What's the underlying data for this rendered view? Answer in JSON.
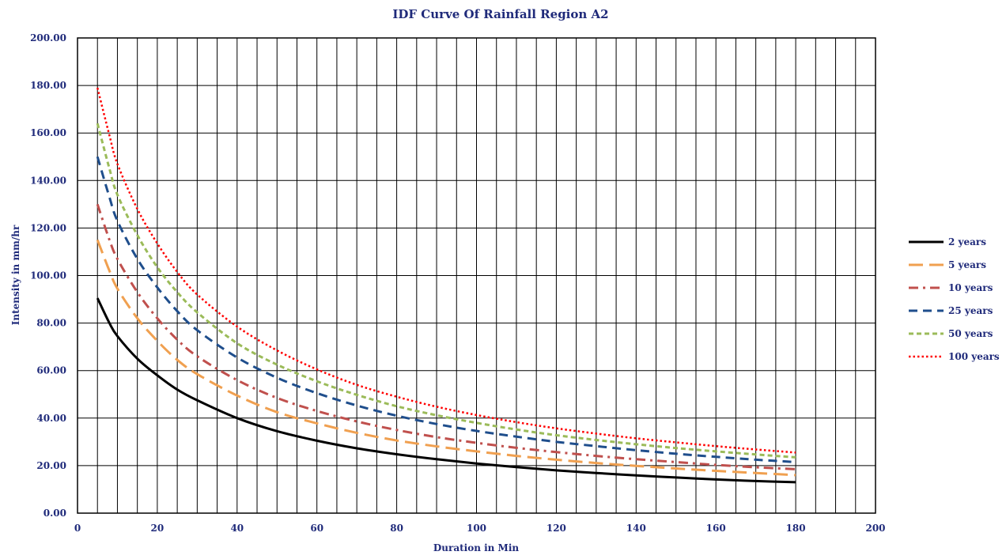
{
  "chart_data": {
    "type": "line",
    "title": "IDF Curve Of  Rainfall Region A2",
    "xlabel": "Duration in Min",
    "ylabel": "Intensity in  mm/hr",
    "xlim": [
      0,
      200
    ],
    "ylim": [
      0,
      200
    ],
    "x_ticks": [
      "0",
      "20",
      "40",
      "60",
      "80",
      "100",
      "120",
      "140",
      "160",
      "180",
      "200"
    ],
    "y_ticks": [
      "0.00",
      "20.00",
      "40.00",
      "60.00",
      "80.00",
      "100.00",
      "120.00",
      "140.00",
      "160.00",
      "180.00",
      "200.00"
    ],
    "grid": true,
    "legend_position": "right",
    "x": [
      5,
      8,
      10,
      15,
      20,
      25,
      30,
      40,
      50,
      60,
      70,
      80,
      90,
      100,
      110,
      120,
      130,
      140,
      150,
      160,
      170,
      180
    ],
    "series": [
      {
        "name": "2 years",
        "color": "#000000",
        "dash": "solid",
        "values": [
          90.5,
          80.0,
          74.5,
          65.0,
          58.0,
          52.0,
          47.5,
          40.0,
          34.5,
          30.5,
          27.3,
          24.8,
          22.7,
          20.9,
          19.4,
          18.0,
          16.9,
          15.9,
          15.0,
          14.2,
          13.5,
          13.0
        ]
      },
      {
        "name": "5 years",
        "color": "#f0a050",
        "dash": "long-dash",
        "values": [
          115.0,
          102.0,
          94.5,
          82.0,
          72.5,
          64.5,
          58.5,
          49.5,
          42.5,
          37.8,
          33.8,
          30.6,
          28.1,
          26.0,
          24.1,
          22.5,
          21.1,
          19.9,
          18.8,
          17.8,
          16.9,
          16.0
        ]
      },
      {
        "name": "10 years",
        "color": "#c0504d",
        "dash": "dash-dot",
        "values": [
          130.0,
          115.0,
          107.0,
          93.0,
          82.0,
          73.0,
          66.0,
          56.0,
          48.5,
          43.0,
          38.6,
          35.0,
          32.0,
          29.6,
          27.5,
          25.7,
          24.1,
          22.7,
          21.5,
          20.3,
          19.3,
          18.5
        ]
      },
      {
        "name": "25 years",
        "color": "#1f4e8c",
        "dash": "dash",
        "values": [
          150.0,
          133.0,
          123.0,
          107.0,
          95.0,
          85.0,
          77.0,
          65.5,
          57.0,
          50.5,
          45.3,
          41.0,
          37.5,
          34.6,
          32.2,
          30.0,
          28.2,
          26.5,
          25.0,
          23.7,
          22.5,
          21.5
        ]
      },
      {
        "name": "50 years",
        "color": "#9bbb59",
        "dash": "short-dash",
        "values": [
          164.0,
          145.0,
          134.0,
          117.0,
          103.5,
          93.0,
          84.5,
          71.5,
          62.5,
          55.5,
          49.8,
          45.0,
          41.2,
          38.0,
          35.2,
          32.8,
          30.8,
          29.0,
          27.4,
          26.0,
          24.7,
          23.5
        ]
      },
      {
        "name": "100 years",
        "color": "#ff0000",
        "dash": "dot",
        "values": [
          179.0,
          159.0,
          147.0,
          128.0,
          113.5,
          101.5,
          92.0,
          78.5,
          68.5,
          60.5,
          54.0,
          49.0,
          44.8,
          41.3,
          38.3,
          35.7,
          33.5,
          31.5,
          29.8,
          28.2,
          26.8,
          25.5
        ]
      }
    ]
  }
}
